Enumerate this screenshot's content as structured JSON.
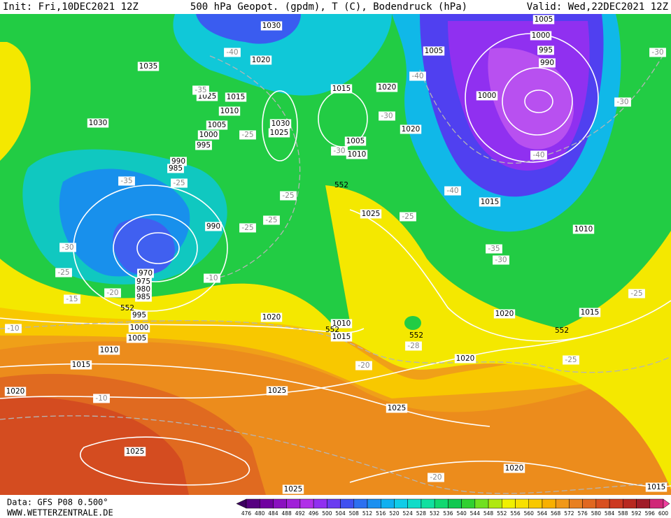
{
  "header": {
    "init": "Init: Fri,10DEC2021 12Z",
    "title": "500 hPa Geopot. (gpdm), T (C), Bodendruck (hPa)",
    "valid": "Valid: Wed,22DEC2021 12Z"
  },
  "footer": {
    "data": "Data: GFS P08 0.500°",
    "site": "WWW.WETTERZENTRALE.DE"
  },
  "colorbar": {
    "labels": [
      476,
      480,
      484,
      488,
      492,
      496,
      500,
      504,
      508,
      512,
      516,
      520,
      524,
      528,
      532,
      536,
      540,
      544,
      548,
      552,
      556,
      560,
      564,
      568,
      572,
      576,
      580,
      584,
      588,
      592,
      596,
      600
    ],
    "colors": [
      "#3c0060",
      "#560080",
      "#7000a0",
      "#8a10c0",
      "#a020d8",
      "#b030e8",
      "#9030f0",
      "#6a3cf0",
      "#4050f0",
      "#2c70f0",
      "#1c90f0",
      "#10b0f0",
      "#10cce8",
      "#10dcc8",
      "#10e0a0",
      "#10d870",
      "#10c850",
      "#30d030",
      "#70e020",
      "#b0e810",
      "#f0f000",
      "#f8e000",
      "#f8c800",
      "#f8b000",
      "#f09818",
      "#e88020",
      "#e06820",
      "#d85020",
      "#cc3820",
      "#b82820",
      "#a01c28",
      "#d02878",
      "#f040a0"
    ]
  },
  "map": {
    "pressure": [
      "1030",
      "1035",
      "1020",
      "1005",
      "1005",
      "1000",
      "995",
      "990",
      "1015",
      "1020",
      "1025",
      "1015",
      "1010",
      "1030",
      "1005",
      "1000",
      "995",
      "1030",
      "1025",
      "1000",
      "1020",
      "1005",
      "1010",
      "990",
      "985",
      "1015",
      "1025",
      "990",
      "1010",
      "970",
      "975",
      "980",
      "985",
      "995",
      "1000",
      "1005",
      "1010",
      "1015",
      "1020",
      "1010",
      "1015",
      "1020",
      "1015",
      "1020",
      "1020",
      "1025",
      "1025",
      "1025",
      "1020",
      "1025",
      "1015"
    ],
    "temperature": [
      "-40",
      "-35",
      "-35",
      "-25",
      "-25",
      "-25",
      "-25",
      "-25",
      "-30",
      "-25",
      "-20",
      "-15",
      "-10",
      "-10",
      "-30",
      "-30",
      "-40",
      "-40",
      "-30",
      "-30",
      "-40",
      "-25",
      "-35",
      "-30",
      "-25",
      "-25",
      "-28",
      "-20",
      "-10",
      "-20"
    ],
    "geopotential": [
      "552",
      "552",
      "552",
      "552",
      "552"
    ]
  }
}
